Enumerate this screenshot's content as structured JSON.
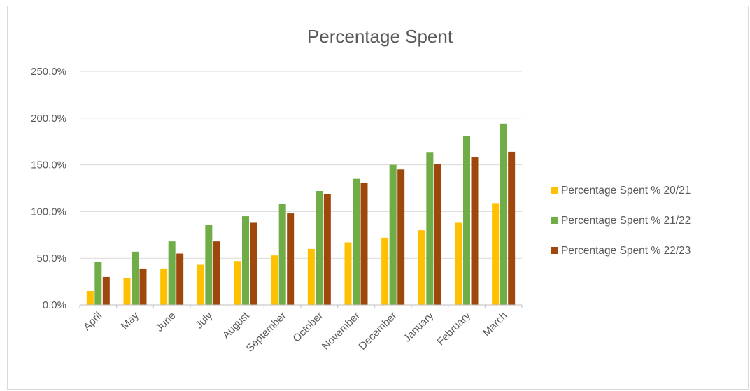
{
  "chart_data": {
    "type": "bar",
    "title": "Percentage Spent",
    "xlabel": "",
    "ylabel": "",
    "categories": [
      "April",
      "May",
      "June",
      "July",
      "August",
      "September",
      "October",
      "November",
      "December",
      "January",
      "February",
      "March"
    ],
    "series": [
      {
        "name": "Percentage Spent % 20/21",
        "color": "#FFC000",
        "values": [
          15,
          29,
          39,
          43,
          47,
          53,
          60,
          67,
          72,
          80,
          88,
          109
        ]
      },
      {
        "name": "Percentage Spent % 21/22",
        "color": "#70AD47",
        "values": [
          46,
          57,
          68,
          86,
          95,
          108,
          122,
          135,
          150,
          163,
          181,
          194
        ]
      },
      {
        "name": "Percentage Spent % 22/23",
        "color": "#9E480E",
        "values": [
          30,
          39,
          55,
          68,
          88,
          98,
          119,
          131,
          145,
          151,
          158,
          164
        ]
      }
    ],
    "ylim": [
      0,
      250
    ],
    "yticks": [
      "0.0%",
      "50.0%",
      "100.0%",
      "150.0%",
      "200.0%",
      "250.0%"
    ],
    "grid": true,
    "legend_position": "right"
  }
}
